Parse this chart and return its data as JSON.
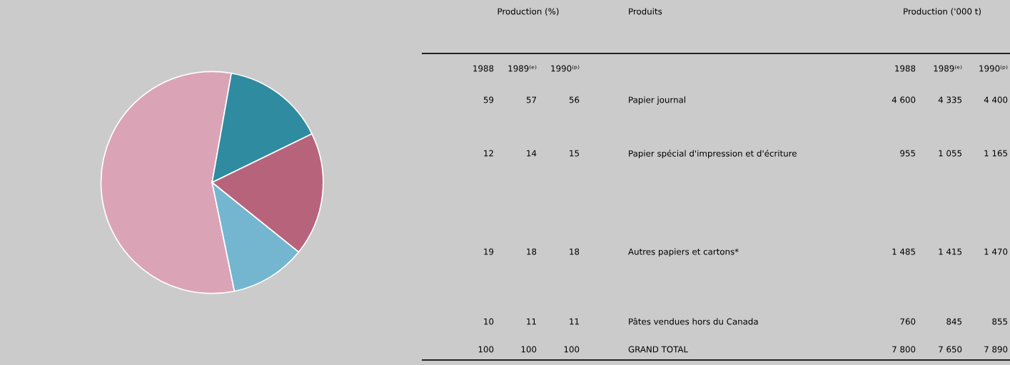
{
  "chart_data": [
    {
      "type": "pie",
      "categories": [
        null,
        null,
        null,
        null
      ],
      "values": [
        56,
        15,
        18,
        11
      ],
      "colors": [
        "#dba3b6",
        "#2f8ba0",
        "#b8637c",
        "#74b6cf"
      ]
    },
    {
      "type": "other",
      "annotations": [
        "Production (%)",
        "Produits",
        "Production ('000 t)",
        "1988",
        "1989⁽ᵉ⁾",
        "1990⁽ᵖ⁾",
        "1988",
        "1989⁽ᵉ⁾",
        "1990⁽ᵖ⁾",
        "59",
        "57",
        "56",
        "Papier journal",
        "4 600",
        "4 335",
        "4 400",
        "12",
        "14",
        "15",
        "Papier spécial d'impression et d'écriture",
        "955",
        "1 055",
        "1 165",
        "19",
        "18",
        "18",
        "Autres papiers et cartons*",
        "1 485",
        "1 415",
        "1 470",
        "10",
        "11",
        "11",
        "Pâtes vendues hors du Canada",
        "760",
        "845",
        "855",
        "100",
        "100",
        "100",
        "GRAND TOTAL",
        "7 800",
        "7 650",
        "7 890"
      ]
    }
  ]
}
